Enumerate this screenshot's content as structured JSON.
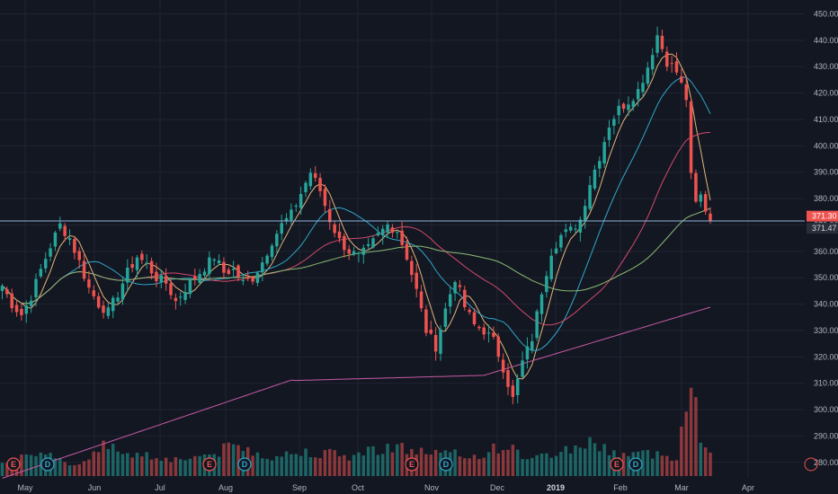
{
  "chart_data": {
    "type": "candlestick",
    "x_ticks": [
      "May",
      "Jun",
      "Jul",
      "Aug",
      "Sep",
      "Oct",
      "Nov",
      "Dec",
      "2019",
      "Feb",
      "Mar",
      "Apr"
    ],
    "y_ticks": [
      280,
      290,
      300,
      310,
      320,
      330,
      340,
      350,
      360,
      370,
      380,
      390,
      400,
      410,
      420,
      430,
      440,
      450
    ],
    "ylim": [
      275,
      455
    ],
    "price_labels": [
      {
        "label": "371.30",
        "value": 371.3,
        "color": "#ef5350"
      },
      {
        "label": "371.47",
        "value": 371.47,
        "color": "#d1d4dc"
      }
    ],
    "horizontal_line": {
      "value": 371.5,
      "color": "#8fb6d9"
    },
    "events": [
      {
        "text": "E",
        "month": "May",
        "kind": "earnings"
      },
      {
        "text": "D",
        "month": "May",
        "kind": "dividend"
      },
      {
        "text": "E",
        "month": "Aug",
        "kind": "earnings"
      },
      {
        "text": "D",
        "month": "Aug",
        "kind": "dividend"
      },
      {
        "text": "E",
        "month": "Nov",
        "kind": "earnings"
      },
      {
        "text": "D",
        "month": "Nov",
        "kind": "dividend"
      },
      {
        "text": "E",
        "month": "Feb",
        "kind": "earnings"
      },
      {
        "text": "D",
        "month": "Feb",
        "kind": "dividend"
      }
    ],
    "price_path": [
      [
        0,
        347
      ],
      [
        2,
        340
      ],
      [
        4,
        336
      ],
      [
        6,
        343
      ],
      [
        8,
        353
      ],
      [
        10,
        362
      ],
      [
        12,
        370
      ],
      [
        14,
        365
      ],
      [
        16,
        356
      ],
      [
        18,
        346
      ],
      [
        20,
        340
      ],
      [
        22,
        337
      ],
      [
        24,
        344
      ],
      [
        26,
        352
      ],
      [
        28,
        358
      ],
      [
        30,
        355
      ],
      [
        32,
        350
      ],
      [
        34,
        348
      ],
      [
        36,
        341
      ],
      [
        38,
        346
      ],
      [
        40,
        350
      ],
      [
        42,
        354
      ],
      [
        44,
        358
      ],
      [
        46,
        352
      ],
      [
        48,
        353
      ],
      [
        50,
        348
      ],
      [
        52,
        350
      ],
      [
        54,
        356
      ],
      [
        56,
        364
      ],
      [
        58,
        370
      ],
      [
        60,
        374
      ],
      [
        62,
        382
      ],
      [
        64,
        390
      ],
      [
        66,
        383
      ],
      [
        68,
        372
      ],
      [
        70,
        364
      ],
      [
        72,
        360
      ],
      [
        74,
        358
      ],
      [
        76,
        361
      ],
      [
        78,
        366
      ],
      [
        80,
        370
      ],
      [
        82,
        368
      ],
      [
        84,
        358
      ],
      [
        86,
        345
      ],
      [
        88,
        330
      ],
      [
        90,
        324
      ],
      [
        92,
        338
      ],
      [
        94,
        350
      ],
      [
        96,
        339
      ],
      [
        98,
        332
      ],
      [
        100,
        330
      ],
      [
        102,
        326
      ],
      [
        104,
        316
      ],
      [
        106,
        304
      ],
      [
        108,
        318
      ],
      [
        110,
        327
      ],
      [
        112,
        345
      ],
      [
        114,
        360
      ],
      [
        116,
        366
      ],
      [
        118,
        368
      ],
      [
        120,
        372
      ],
      [
        122,
        386
      ],
      [
        124,
        396
      ],
      [
        126,
        408
      ],
      [
        128,
        414
      ],
      [
        130,
        417
      ],
      [
        132,
        421
      ],
      [
        134,
        430
      ],
      [
        136,
        442
      ],
      [
        138,
        432
      ],
      [
        140,
        428
      ],
      [
        142,
        418
      ],
      [
        143,
        388
      ],
      [
        144,
        378
      ],
      [
        145,
        381
      ],
      [
        146,
        376
      ],
      [
        147,
        372
      ]
    ],
    "volume_path": [
      [
        0,
        12
      ],
      [
        10,
        14
      ],
      [
        16,
        8
      ],
      [
        20,
        22
      ],
      [
        28,
        16
      ],
      [
        36,
        12
      ],
      [
        44,
        16
      ],
      [
        48,
        22
      ],
      [
        56,
        14
      ],
      [
        64,
        18
      ],
      [
        72,
        14
      ],
      [
        80,
        22
      ],
      [
        86,
        18
      ],
      [
        92,
        16
      ],
      [
        98,
        14
      ],
      [
        104,
        22
      ],
      [
        110,
        12
      ],
      [
        116,
        18
      ],
      [
        122,
        24
      ],
      [
        128,
        16
      ],
      [
        134,
        16
      ],
      [
        140,
        14
      ],
      [
        142,
        58
      ],
      [
        143,
        62
      ],
      [
        144,
        50
      ],
      [
        145,
        22
      ]
    ],
    "ma": [
      {
        "name": "",
        "color": "#e3b57a",
        "period": 5
      },
      {
        "name": "",
        "color": "#2fa7c9",
        "period": 14
      },
      {
        "name": "",
        "color": "#d24a6c",
        "period": 30
      },
      {
        "name": "",
        "color": "#8dbb74",
        "period": 50
      },
      {
        "name": "",
        "color": "#c65aa3",
        "period": 100
      }
    ],
    "colors": {
      "up": "#26a69a",
      "down": "#ef5350",
      "grid": "#1f2433",
      "bg": "#131722"
    }
  }
}
